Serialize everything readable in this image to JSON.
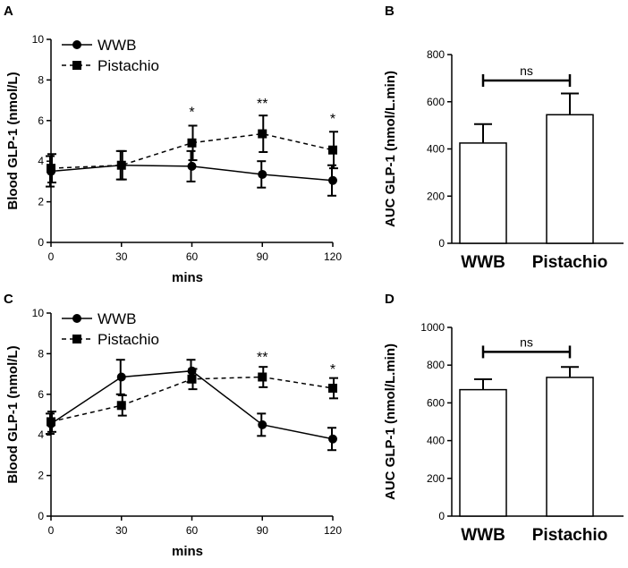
{
  "chart_data": [
    {
      "panel": "A",
      "type": "line",
      "xlabel": "mins",
      "ylabel": "Blood GLP-1 (nmol/L)",
      "x": [
        0,
        30,
        60,
        90,
        120
      ],
      "xticks": [
        "0",
        "30",
        "60",
        "90",
        "120"
      ],
      "ylim": [
        0,
        10
      ],
      "yticks": [
        "0",
        "2",
        "4",
        "6",
        "8",
        "10"
      ],
      "legend_position": "top-left",
      "series": [
        {
          "name": "WWB",
          "style": "solid",
          "marker": "circle",
          "values": [
            3.5,
            3.8,
            3.75,
            3.35,
            3.05
          ],
          "errors": [
            0.75,
            0.7,
            0.75,
            0.65,
            0.75
          ]
        },
        {
          "name": "Pistachio",
          "style": "dashed",
          "marker": "square",
          "values": [
            3.65,
            3.8,
            4.9,
            5.35,
            4.55
          ],
          "errors": [
            0.7,
            0.7,
            0.85,
            0.9,
            0.9
          ]
        }
      ],
      "significance": [
        {
          "x": 60,
          "y": 6.2,
          "label": "*"
        },
        {
          "x": 90,
          "y": 6.6,
          "label": "**"
        },
        {
          "x": 120,
          "y": 5.85,
          "label": "*"
        }
      ]
    },
    {
      "panel": "B",
      "type": "bar",
      "ylabel": "AUC GLP-1 (nmol/L.min)",
      "categories": [
        "WWB",
        "Pistachio"
      ],
      "values": [
        425,
        545
      ],
      "errors": [
        80,
        90
      ],
      "ylim": [
        0,
        800
      ],
      "yticks": [
        "0",
        "200",
        "400",
        "600",
        "800"
      ],
      "comparison": {
        "label": "ns",
        "y": 690
      }
    },
    {
      "panel": "C",
      "type": "line",
      "xlabel": "mins",
      "ylabel": "Blood GLP-1 (nmol/L)",
      "x": [
        0,
        30,
        60,
        90,
        120
      ],
      "xticks": [
        "0",
        "30",
        "60",
        "90",
        "120"
      ],
      "ylim": [
        0,
        10
      ],
      "yticks": [
        "0",
        "2",
        "4",
        "6",
        "8",
        "10"
      ],
      "legend_position": "top-left",
      "series": [
        {
          "name": "WWB",
          "style": "solid",
          "marker": "circle",
          "values": [
            4.55,
            6.85,
            7.15,
            4.5,
            3.8
          ],
          "errors": [
            0.5,
            0.85,
            0.55,
            0.55,
            0.55
          ]
        },
        {
          "name": "Pistachio",
          "style": "dashed",
          "marker": "square",
          "values": [
            4.65,
            5.45,
            6.75,
            6.85,
            6.3
          ],
          "errors": [
            0.5,
            0.5,
            0.5,
            0.5,
            0.5
          ]
        }
      ],
      "significance": [
        {
          "x": 90,
          "y": 7.6,
          "label": "**"
        },
        {
          "x": 120,
          "y": 7.0,
          "label": "*"
        }
      ]
    },
    {
      "panel": "D",
      "type": "bar",
      "ylabel": "AUC GLP-1 (nmol/L.min)",
      "categories": [
        "WWB",
        "Pistachio"
      ],
      "values": [
        670,
        735
      ],
      "errors": [
        55,
        55
      ],
      "ylim": [
        0,
        1000
      ],
      "yticks": [
        "0",
        "200",
        "400",
        "600",
        "800",
        "1000"
      ],
      "comparison": {
        "label": "ns",
        "y": 870
      }
    }
  ]
}
